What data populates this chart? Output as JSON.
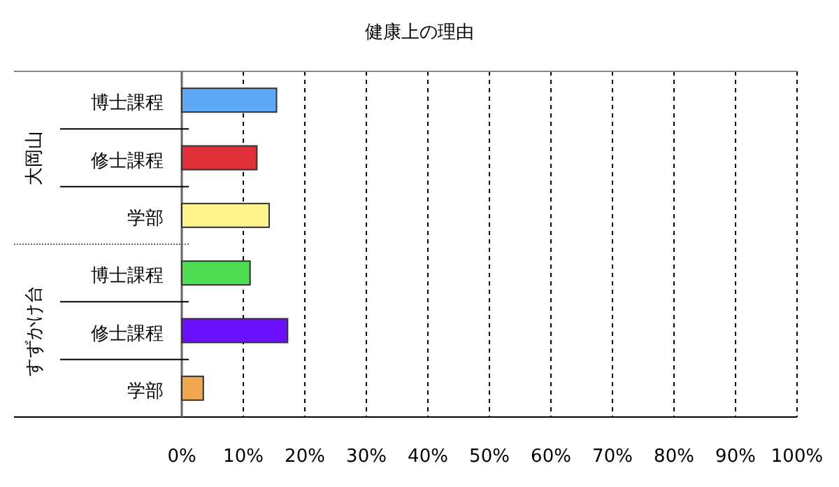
{
  "chart_data": {
    "type": "bar",
    "orientation": "horizontal",
    "title": "健康上の理由",
    "categories": [
      "博士課程",
      "修士課程",
      "学部",
      "博士課程",
      "修士課程",
      "学部"
    ],
    "values": [
      15.4,
      12.2,
      14.2,
      11.1,
      17.2,
      3.5
    ],
    "colors": [
      "#5fa8f5",
      "#e03038",
      "#fff48c",
      "#50dc50",
      "#6a10ff",
      "#f0a850"
    ],
    "xlim": [
      0,
      100
    ],
    "xticks": [
      {
        "value": 0,
        "label": "0%"
      },
      {
        "value": 10,
        "label": "10%"
      },
      {
        "value": 20,
        "label": "20%"
      },
      {
        "value": 30,
        "label": "30%"
      },
      {
        "value": 40,
        "label": "40%"
      },
      {
        "value": 50,
        "label": "50%"
      },
      {
        "value": 60,
        "label": "60%"
      },
      {
        "value": 70,
        "label": "70%"
      },
      {
        "value": 80,
        "label": "80%"
      },
      {
        "value": 90,
        "label": "90%"
      },
      {
        "value": 100,
        "label": "100%"
      }
    ],
    "grid": "x",
    "annotations": [
      "大岡山",
      "すずかけ台"
    ]
  }
}
